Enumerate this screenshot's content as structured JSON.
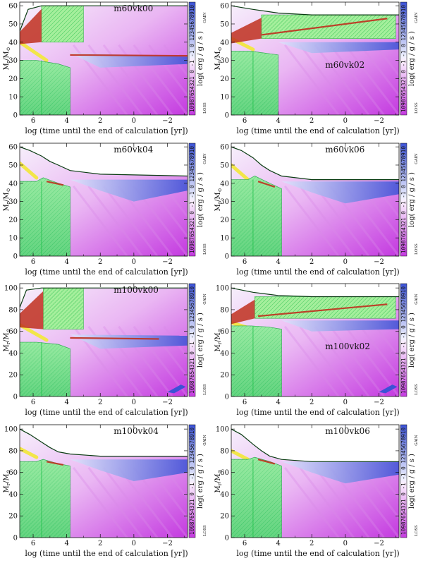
{
  "common": {
    "xlabel": "log (time until the end of calculation [yr])",
    "ylabel_main": "M",
    "ylabel_sub": "r",
    "ylabel_slash": "/M",
    "ylabel_sun": "⊙",
    "cbar_label": "log( erg / g / s )",
    "cbar_gain": "GAIN",
    "cbar_loss": "LOSS",
    "cbar_digits": "10987654321 0 -1 -1 0 12345678910",
    "colors": {
      "gain_blue": "#3b52d6",
      "loss_magenta": "#c43ae0",
      "convective_green": "#48d66a",
      "convective_dark_green": "#2f9f57",
      "semi_red": "#c0301e",
      "yellow": "#f2e64a",
      "surface_line": "#0b3d13"
    }
  },
  "chart_data": [
    {
      "type": "area",
      "title": "m60vk00",
      "xlim": [
        6.8,
        -3.2
      ],
      "ylim": [
        0,
        62
      ],
      "xticks": [
        6,
        4,
        2,
        0,
        -2
      ],
      "yticks": [
        0,
        10,
        20,
        30,
        40,
        50,
        60
      ],
      "surface": [
        [
          6.8,
          46
        ],
        [
          6.3,
          58
        ],
        [
          5.5,
          60
        ],
        [
          3,
          60
        ],
        [
          -3.2,
          60
        ]
      ],
      "envelope_conv": [
        5.5,
        3.0,
        40,
        60
      ],
      "core_conv": [
        [
          6.8,
          30
        ],
        [
          5.8,
          30
        ],
        [
          4.5,
          28
        ],
        [
          3.8,
          26
        ],
        [
          3.8,
          0
        ]
      ],
      "blue_tongue": [
        [
          3.8,
          34
        ],
        [
          -3.2,
          32
        ],
        [
          -3.2,
          28
        ],
        [
          2,
          26
        ]
      ],
      "red_band": [
        [
          3.8,
          33
        ],
        [
          -3.2,
          32.5
        ]
      ],
      "yellow_band": [
        [
          6.8,
          40
        ],
        [
          5.2,
          30
        ]
      ],
      "blue_patch": false
    },
    {
      "type": "area",
      "title": "m60vk02",
      "xlim": [
        6.8,
        -3.2
      ],
      "ylim": [
        0,
        62
      ],
      "xticks": [
        6,
        4,
        2,
        0,
        -2
      ],
      "yticks": [
        0,
        10,
        20,
        30,
        40,
        50,
        60
      ],
      "surface": [
        [
          6.8,
          60
        ],
        [
          5.5,
          58
        ],
        [
          4,
          56
        ],
        [
          2,
          55
        ],
        [
          -3.2,
          55
        ]
      ],
      "envelope_conv": [
        5.0,
        -3.0,
        42,
        55
      ],
      "core_conv": [
        [
          6.8,
          35
        ],
        [
          5.6,
          35
        ],
        [
          4.8,
          34
        ],
        [
          4.0,
          33
        ],
        [
          4.0,
          0
        ]
      ],
      "blue_tongue": [
        [
          4.0,
          40
        ],
        [
          -3.2,
          40
        ],
        [
          -3.2,
          36
        ],
        [
          2,
          34
        ]
      ],
      "red_band": [
        [
          5.0,
          44
        ],
        [
          -2.5,
          53
        ]
      ],
      "yellow_band": [
        [
          6.8,
          42
        ],
        [
          5.5,
          36
        ]
      ],
      "blue_patch": false
    },
    {
      "type": "area",
      "title": "m60vk04",
      "xlim": [
        6.8,
        -3.2
      ],
      "ylim": [
        0,
        62
      ],
      "xticks": [
        6,
        4,
        2,
        0,
        -2
      ],
      "yticks": [
        0,
        10,
        20,
        30,
        40,
        50,
        60
      ],
      "surface": [
        [
          6.8,
          60
        ],
        [
          6.2,
          58
        ],
        [
          5.5,
          55
        ],
        [
          5.0,
          52
        ],
        [
          4.5,
          50
        ],
        [
          3.8,
          47
        ],
        [
          2,
          45
        ],
        [
          -3.2,
          44
        ]
      ],
      "envelope_conv": null,
      "core_conv": [
        [
          6.8,
          41
        ],
        [
          5.8,
          41
        ],
        [
          5.4,
          43
        ],
        [
          4.5,
          40
        ],
        [
          3.8,
          38
        ],
        [
          3.8,
          0
        ]
      ],
      "blue_tongue": [
        [
          3.8,
          42
        ],
        [
          -3.2,
          42
        ],
        [
          -3.2,
          36
        ],
        [
          0,
          30
        ],
        [
          2,
          36
        ]
      ],
      "red_band": [
        [
          5.2,
          41
        ],
        [
          4.2,
          39
        ]
      ],
      "yellow_band": [
        [
          6.8,
          51
        ],
        [
          5.8,
          43
        ]
      ],
      "blue_patch": false
    },
    {
      "type": "area",
      "title": "m60vk06",
      "xlim": [
        6.8,
        -3.2
      ],
      "ylim": [
        0,
        62
      ],
      "xticks": [
        6,
        4,
        2,
        0,
        -2
      ],
      "yticks": [
        0,
        10,
        20,
        30,
        40,
        50,
        60
      ],
      "surface": [
        [
          6.8,
          60
        ],
        [
          6.2,
          58
        ],
        [
          5.5,
          54
        ],
        [
          5.0,
          50
        ],
        [
          4.5,
          47
        ],
        [
          3.8,
          44
        ],
        [
          2,
          42
        ],
        [
          -3.2,
          42
        ]
      ],
      "envelope_conv": null,
      "core_conv": [
        [
          6.8,
          42
        ],
        [
          5.8,
          42
        ],
        [
          5.4,
          44
        ],
        [
          4.5,
          40
        ],
        [
          3.8,
          37
        ],
        [
          3.8,
          0
        ]
      ],
      "blue_tongue": [
        [
          3.8,
          41
        ],
        [
          -3.2,
          41
        ],
        [
          -3.2,
          34
        ],
        [
          0,
          29
        ],
        [
          2,
          35
        ]
      ],
      "red_band": [
        [
          5.2,
          41
        ],
        [
          4.2,
          38
        ]
      ],
      "yellow_band": [
        [
          6.8,
          50
        ],
        [
          5.8,
          42
        ]
      ],
      "blue_patch": false
    },
    {
      "type": "area",
      "title": "m100vk00",
      "xlim": [
        6.8,
        -3.2
      ],
      "ylim": [
        0,
        104
      ],
      "xticks": [
        6,
        4,
        2,
        0,
        -2
      ],
      "yticks": [
        0,
        20,
        40,
        60,
        80,
        100
      ],
      "surface": [
        [
          6.8,
          82
        ],
        [
          6.4,
          98
        ],
        [
          5.5,
          100
        ],
        [
          3,
          100
        ],
        [
          -3.2,
          100
        ]
      ],
      "envelope_conv": [
        5.4,
        3.0,
        62,
        100
      ],
      "core_conv": [
        [
          6.8,
          50
        ],
        [
          5.8,
          50
        ],
        [
          4.5,
          48
        ],
        [
          3.8,
          44
        ],
        [
          3.8,
          0
        ]
      ],
      "blue_tongue": [
        [
          3.8,
          57
        ],
        [
          -3.2,
          56
        ],
        [
          -3.2,
          47
        ],
        [
          2,
          44
        ]
      ],
      "red_band": [
        [
          3.8,
          54
        ],
        [
          -1.5,
          53
        ]
      ],
      "yellow_band": [
        [
          6.8,
          66
        ],
        [
          5.2,
          52
        ]
      ],
      "blue_patch": true
    },
    {
      "type": "area",
      "title": "m100vk02",
      "xlim": [
        6.8,
        -3.2
      ],
      "ylim": [
        0,
        104
      ],
      "xticks": [
        6,
        4,
        2,
        0,
        -2
      ],
      "yticks": [
        0,
        20,
        40,
        60,
        80,
        100
      ],
      "surface": [
        [
          6.8,
          100
        ],
        [
          5.5,
          96
        ],
        [
          4,
          93
        ],
        [
          2,
          92
        ],
        [
          -3.2,
          92
        ]
      ],
      "envelope_conv": [
        5.4,
        -3.0,
        72,
        92
      ],
      "core_conv": [
        [
          6.8,
          65
        ],
        [
          5.6,
          65
        ],
        [
          4.6,
          64
        ],
        [
          3.8,
          62
        ],
        [
          3.8,
          0
        ]
      ],
      "blue_tongue": [
        [
          3.8,
          70
        ],
        [
          -3.2,
          70
        ],
        [
          -3.2,
          62
        ],
        [
          2,
          60
        ]
      ],
      "red_band": [
        [
          5.2,
          74
        ],
        [
          -2.5,
          85
        ]
      ],
      "yellow_band": [
        [
          6.8,
          68
        ],
        [
          5.5,
          62
        ]
      ],
      "blue_patch": true
    },
    {
      "type": "area",
      "title": "m100vk04",
      "xlim": [
        6.8,
        -3.2
      ],
      "ylim": [
        0,
        104
      ],
      "xticks": [
        6,
        4,
        2,
        0,
        -2
      ],
      "yticks": [
        0,
        20,
        40,
        60,
        80,
        100
      ],
      "surface": [
        [
          6.8,
          100
        ],
        [
          6.2,
          95
        ],
        [
          5.5,
          88
        ],
        [
          5.0,
          83
        ],
        [
          4.5,
          79
        ],
        [
          3.8,
          77
        ],
        [
          2,
          75
        ],
        [
          -3.2,
          75
        ]
      ],
      "envelope_conv": null,
      "core_conv": [
        [
          6.8,
          70
        ],
        [
          5.8,
          70
        ],
        [
          5.4,
          72
        ],
        [
          4.5,
          68
        ],
        [
          3.8,
          66
        ],
        [
          3.8,
          0
        ]
      ],
      "blue_tongue": [
        [
          3.8,
          72
        ],
        [
          -3.2,
          72
        ],
        [
          -3.2,
          60
        ],
        [
          0,
          52
        ],
        [
          2,
          62
        ]
      ],
      "red_band": [
        [
          5.2,
          70
        ],
        [
          4.2,
          67
        ]
      ],
      "yellow_band": [
        [
          6.8,
          82
        ],
        [
          5.8,
          74
        ]
      ],
      "blue_patch": false
    },
    {
      "type": "area",
      "title": "m100vk06",
      "xlim": [
        6.8,
        -3.2
      ],
      "ylim": [
        0,
        104
      ],
      "xticks": [
        6,
        4,
        2,
        0,
        -2
      ],
      "yticks": [
        0,
        20,
        40,
        60,
        80,
        100
      ],
      "surface": [
        [
          6.8,
          100
        ],
        [
          6.2,
          95
        ],
        [
          5.5,
          86
        ],
        [
          5.0,
          80
        ],
        [
          4.5,
          75
        ],
        [
          3.8,
          72
        ],
        [
          2,
          70
        ],
        [
          -3.2,
          70
        ]
      ],
      "envelope_conv": null,
      "core_conv": [
        [
          6.8,
          72
        ],
        [
          5.8,
          72
        ],
        [
          5.4,
          74
        ],
        [
          4.5,
          70
        ],
        [
          3.8,
          66
        ],
        [
          3.8,
          0
        ]
      ],
      "blue_tongue": [
        [
          3.8,
          70
        ],
        [
          -3.2,
          70
        ],
        [
          -3.2,
          58
        ],
        [
          0,
          50
        ],
        [
          2,
          60
        ]
      ],
      "red_band": [
        [
          5.2,
          72
        ],
        [
          4.2,
          68
        ]
      ],
      "yellow_band": [
        [
          6.8,
          80
        ],
        [
          5.8,
          72
        ]
      ],
      "blue_patch": false
    }
  ]
}
